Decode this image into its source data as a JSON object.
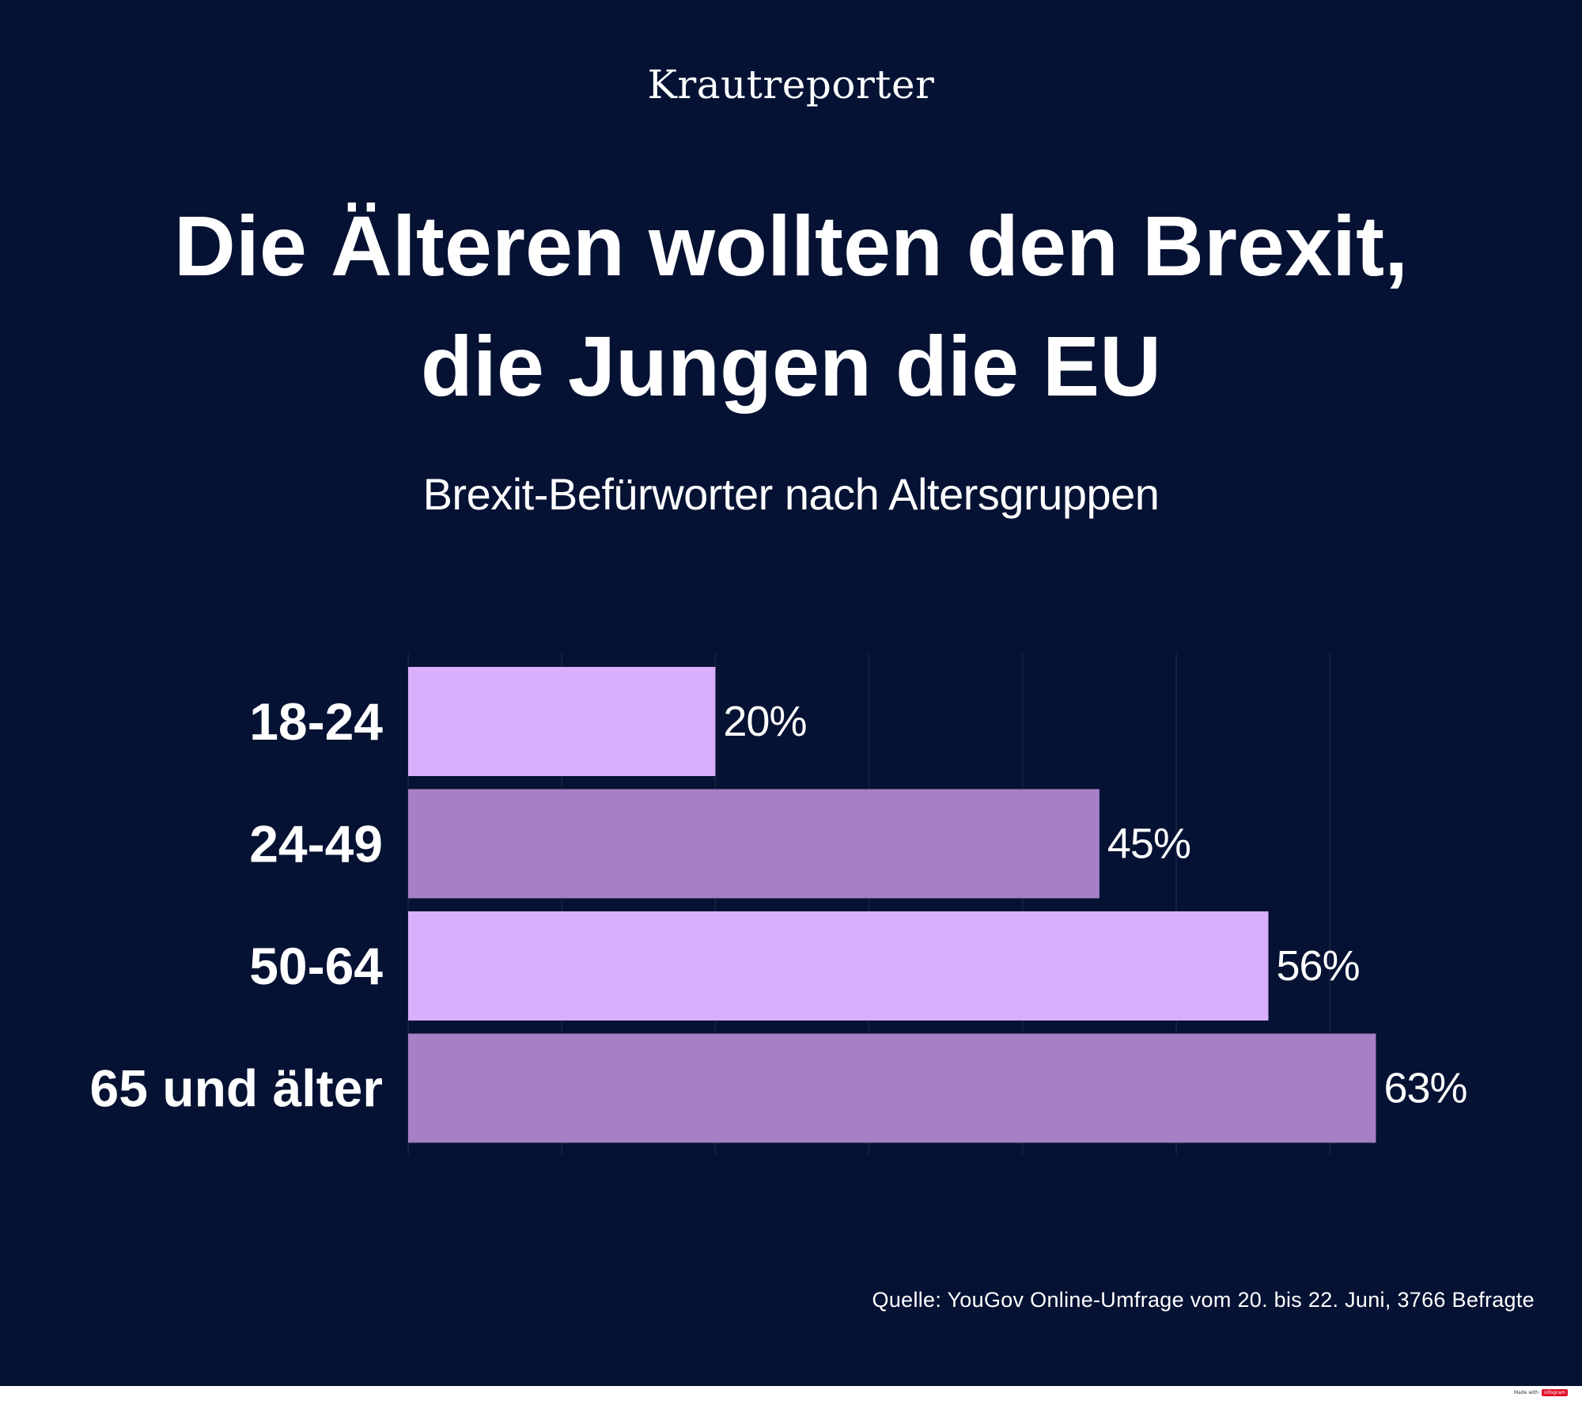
{
  "brand": "Krautreporter",
  "title_line1": "Die Älteren wollten den Brexit,",
  "title_line2": "die Jungen die EU",
  "subtitle": "Brexit-Befürworter nach Altersgruppen",
  "source": "Quelle:  YouGov Online-Umfrage vom 20. bis 22. Juni, 3766 Befragte",
  "footer": {
    "made_with": "Made with",
    "tool": "infogram"
  },
  "colors": {
    "background": "#061233",
    "bar_light": "#d9aefc",
    "bar_dark": "#a67fc4",
    "text": "#ffffff"
  },
  "chart_data": {
    "type": "bar",
    "orientation": "horizontal",
    "categories": [
      "18-24",
      "24-49",
      "50-64",
      "65 und älter"
    ],
    "values": [
      20,
      45,
      56,
      63
    ],
    "value_labels": [
      "20%",
      "45%",
      "56%",
      "63%"
    ],
    "unit": "%",
    "xlim": [
      0,
      60
    ],
    "grid": true,
    "legend": "none"
  }
}
